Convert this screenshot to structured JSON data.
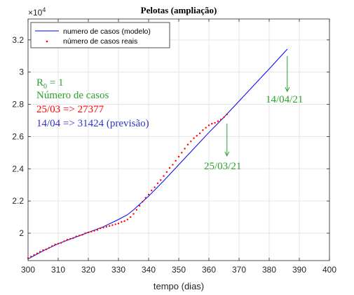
{
  "chart_data": {
    "type": "line",
    "title": "Pelotas (ampliação)",
    "xlabel": "tempo (dias)",
    "ylabel": "",
    "xlim": [
      300,
      400
    ],
    "ylim": [
      18300,
      33300
    ],
    "x_ticks": [
      300,
      310,
      320,
      330,
      340,
      350,
      360,
      370,
      380,
      390,
      400
    ],
    "y_ticks": [
      20000,
      22000,
      24000,
      26000,
      28000,
      30000,
      32000
    ],
    "y_tick_labels": [
      "2",
      "2.2",
      "2.4",
      "2.6",
      "2.8",
      "3",
      "3.2"
    ],
    "y_multiplier_base": "×10",
    "y_multiplier_exp": "4",
    "grid": true,
    "legend_position": "top-left",
    "series": [
      {
        "name": "numero de casos (modelo)",
        "style": "line",
        "color": "#0000ff",
        "x": [
          300,
          305,
          310,
          315,
          320,
          325,
          330,
          333,
          335,
          340,
          345,
          350,
          355,
          360,
          365,
          370,
          375,
          380,
          386
        ],
        "y": [
          18400,
          18900,
          19350,
          19700,
          20050,
          20400,
          20850,
          21150,
          21450,
          22300,
          23250,
          24250,
          25250,
          26250,
          27200,
          28200,
          29200,
          30200,
          31424
        ]
      },
      {
        "name": "número de casos reais",
        "style": "dots",
        "color": "#ff0000",
        "x": [
          300,
          301,
          302,
          303,
          304,
          305,
          306,
          307,
          308,
          309,
          310,
          311,
          312,
          313,
          314,
          315,
          316,
          317,
          318,
          319,
          320,
          321,
          322,
          323,
          324,
          325,
          326,
          327,
          328,
          329,
          330,
          331,
          332,
          333,
          334,
          335,
          336,
          337,
          338,
          339,
          340,
          341,
          342,
          343,
          344,
          345,
          346,
          347,
          348,
          349,
          350,
          351,
          352,
          353,
          354,
          355,
          356,
          357,
          358,
          359,
          360,
          361,
          362,
          363,
          364,
          365,
          366
        ],
        "y": [
          18450,
          18550,
          18650,
          18750,
          18850,
          18950,
          19000,
          19100,
          19200,
          19300,
          19350,
          19400,
          19500,
          19600,
          19650,
          19700,
          19800,
          19850,
          19900,
          20000,
          20050,
          20100,
          20150,
          20200,
          20300,
          20350,
          20400,
          20450,
          20500,
          20550,
          20600,
          20700,
          20750,
          20850,
          21000,
          21200,
          21450,
          21700,
          21950,
          22200,
          22400,
          22650,
          22850,
          23100,
          23300,
          23550,
          23800,
          24050,
          24250,
          24500,
          24750,
          25000,
          25250,
          25500,
          25700,
          25900,
          26050,
          26200,
          26400,
          26550,
          26700,
          26800,
          26850,
          26950,
          27050,
          27200,
          27377
        ]
      }
    ],
    "annotations": {
      "r0_prefix": "R",
      "r0_sub": "0",
      "r0_suffix": " = 1",
      "cases_header": "Número de casos",
      "line_real": "25/03 => 27377",
      "line_forecast": "14/04 => 31424 (previsão)",
      "label_forecast_date": "14/04/21",
      "label_real_date": "25/03/21",
      "color_green": "#2ca02c",
      "color_red": "#ff0000",
      "color_blue": "#3333cc",
      "arrow_forecast": {
        "x": 386,
        "y_from": 31000,
        "y_to": 28800
      },
      "arrow_real": {
        "x": 366,
        "y_from": 26800,
        "y_to": 24800
      }
    }
  }
}
